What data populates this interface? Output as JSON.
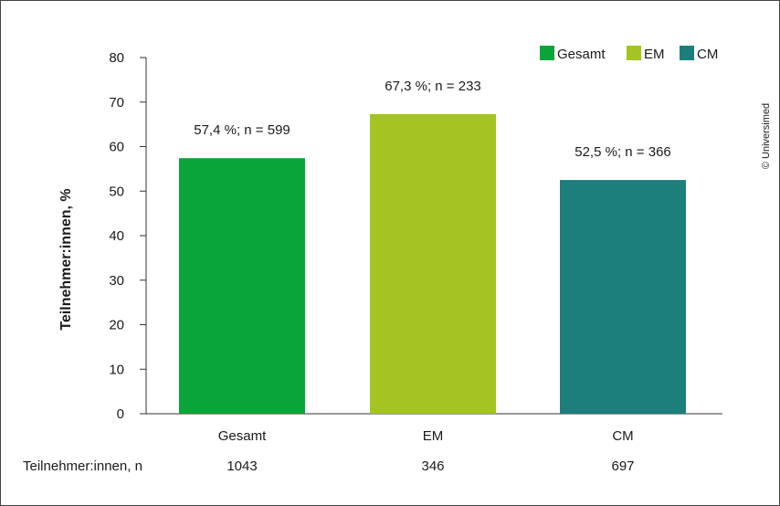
{
  "chart_data": {
    "type": "bar",
    "categories": [
      "Gesamt",
      "EM",
      "CM"
    ],
    "values": [
      57.4,
      67.3,
      52.5
    ],
    "colors": [
      "#0aa538",
      "#a3c423",
      "#1c7f7c"
    ],
    "value_labels": [
      "57,4 %; n = 599",
      "67,3 %; n = 233",
      "52,5 %; n = 366"
    ],
    "ylabel": "Teilnehmer:innen, %",
    "ylim": [
      0,
      80
    ],
    "yticks": [
      0,
      10,
      20,
      30,
      40,
      50,
      60,
      70,
      80
    ],
    "legend": {
      "placement": "top-right",
      "entries": [
        "Gesamt",
        "EM",
        "CM"
      ]
    },
    "grid": false
  },
  "table_row": {
    "label": "Teilnehmer:innen, n",
    "values": [
      "1043",
      "346",
      "697"
    ]
  },
  "copyright": "© Universimed"
}
